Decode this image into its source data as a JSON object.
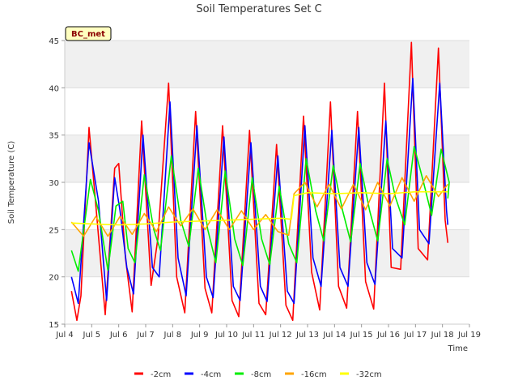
{
  "chart_data": {
    "type": "line",
    "title": "Soil Temperatures Set C",
    "xlabel": "Time",
    "ylabel": "Soil Temperature (C)",
    "station_label": "BC_met",
    "xlim": [
      4,
      19
    ],
    "ylim": [
      15,
      45
    ],
    "x_ticks": [
      {
        "v": 4,
        "label": "Jul 4"
      },
      {
        "v": 5,
        "label": "Jul 5"
      },
      {
        "v": 6,
        "label": "Jul 6"
      },
      {
        "v": 7,
        "label": "Jul 7"
      },
      {
        "v": 8,
        "label": "Jul 8"
      },
      {
        "v": 9,
        "label": "Jul 9"
      },
      {
        "v": 10,
        "label": "Jul 10"
      },
      {
        "v": 11,
        "label": "Jul 11"
      },
      {
        "v": 12,
        "label": "Jul 12"
      },
      {
        "v": 13,
        "label": "Jul 13"
      },
      {
        "v": 14,
        "label": "Jul 14"
      },
      {
        "v": 15,
        "label": "Jul 15"
      },
      {
        "v": 16,
        "label": "Jul 16"
      },
      {
        "v": 17,
        "label": "Jul 17"
      },
      {
        "v": 18,
        "label": "Jul 18"
      },
      {
        "v": 19,
        "label": "Jul 19"
      }
    ],
    "y_ticks": [
      15,
      20,
      25,
      30,
      35,
      40,
      45
    ],
    "background_bands": true,
    "legend_position": "bottom",
    "series": [
      {
        "name": "-2cm",
        "color": "#ff0000",
        "x": [
          4.25,
          4.45,
          4.6,
          4.9,
          5.2,
          5.5,
          5.85,
          6.0,
          6.25,
          6.5,
          6.85,
          7.2,
          7.45,
          7.85,
          8.15,
          8.45,
          8.85,
          9.2,
          9.45,
          9.85,
          10.2,
          10.45,
          10.85,
          11.2,
          11.45,
          11.85,
          12.2,
          12.45,
          12.85,
          13.15,
          13.45,
          13.85,
          14.15,
          14.45,
          14.85,
          15.15,
          15.45,
          15.85,
          16.1,
          16.45,
          16.85,
          17.1,
          17.45,
          17.85,
          18.1,
          18.2
        ],
        "y": [
          18.5,
          15.4,
          18,
          35.8,
          26,
          16,
          31.5,
          32,
          22,
          16.3,
          36.5,
          19.1,
          24,
          40.5,
          20,
          16.2,
          37.5,
          18.8,
          16.2,
          36,
          17.5,
          15.8,
          35.5,
          17.2,
          16,
          34,
          17,
          15.4,
          37,
          20.5,
          16.5,
          38.5,
          19,
          16.7,
          37.5,
          19.5,
          16.6,
          40.5,
          21,
          20.8,
          44.8,
          23,
          21.8,
          44.2,
          26,
          23.6
        ]
      },
      {
        "name": "-4cm",
        "color": "#0000ff",
        "x": [
          4.25,
          4.5,
          4.9,
          5.25,
          5.55,
          5.85,
          6.05,
          6.3,
          6.55,
          6.9,
          7.25,
          7.5,
          7.9,
          8.2,
          8.5,
          8.9,
          9.25,
          9.5,
          9.9,
          10.25,
          10.5,
          10.9,
          11.25,
          11.5,
          11.9,
          12.25,
          12.5,
          12.9,
          13.2,
          13.5,
          13.9,
          14.2,
          14.5,
          14.9,
          15.2,
          15.5,
          15.9,
          16.15,
          16.5,
          16.9,
          17.15,
          17.5,
          17.9,
          18.15,
          18.2
        ],
        "y": [
          20,
          17.2,
          34.2,
          28,
          17.5,
          30.5,
          27,
          21,
          18.2,
          35,
          21,
          20,
          38.5,
          22,
          18,
          36,
          20,
          17.8,
          34.8,
          19,
          17.5,
          34.2,
          19,
          17.4,
          32.8,
          18.5,
          17.2,
          36,
          22,
          19,
          35.5,
          21,
          19,
          35.8,
          21.5,
          19.2,
          36.5,
          23,
          22,
          41,
          25,
          23.5,
          40.5,
          27,
          25.5
        ]
      },
      {
        "name": "-8cm",
        "color": "#00ee00",
        "x": [
          4.25,
          4.5,
          4.95,
          5.25,
          5.6,
          5.9,
          6.15,
          6.35,
          6.6,
          6.95,
          7.3,
          7.55,
          7.95,
          8.3,
          8.6,
          8.95,
          9.3,
          9.6,
          9.95,
          10.3,
          10.6,
          10.95,
          11.3,
          11.6,
          11.95,
          12.3,
          12.6,
          12.95,
          13.3,
          13.6,
          13.95,
          14.3,
          14.6,
          14.95,
          15.3,
          15.6,
          15.95,
          16.25,
          16.6,
          16.95,
          17.3,
          17.6,
          17.95,
          18.25,
          18.2
        ],
        "y": [
          22.8,
          20.6,
          30.3,
          27,
          20.7,
          27.5,
          28,
          23,
          21.5,
          30.8,
          25,
          22.8,
          32.8,
          26,
          23.2,
          31.5,
          25,
          21.5,
          31.2,
          24,
          21.2,
          30.5,
          24,
          21.3,
          29.6,
          23.5,
          21.5,
          32.5,
          27,
          23.8,
          31.8,
          27,
          23.7,
          32,
          27,
          23.8,
          32.5,
          28.5,
          25.5,
          33.8,
          30,
          26.5,
          33.5,
          30,
          28.3
        ]
      },
      {
        "name": "-16cm",
        "color": "#ffa500",
        "x": [
          4.25,
          4.7,
          5.15,
          5.6,
          6.05,
          6.5,
          6.95,
          7.4,
          7.85,
          8.3,
          8.75,
          9.2,
          9.65,
          10.1,
          10.55,
          11.0,
          11.45,
          11.9,
          12.3,
          12.5,
          12.9,
          13.35,
          13.8,
          14.25,
          14.7,
          15.15,
          15.6,
          16.05,
          16.5,
          16.95,
          17.4,
          17.85,
          18.2
        ],
        "y": [
          25.8,
          24.3,
          26.4,
          24.3,
          26.4,
          24.5,
          26.7,
          24.8,
          27.4,
          25.4,
          27.2,
          25,
          27.1,
          25,
          27,
          25,
          26.6,
          24.8,
          24.4,
          28.8,
          30,
          27.4,
          29.8,
          27.2,
          29.8,
          27.1,
          30,
          27.5,
          30.5,
          28,
          30.7,
          28.5,
          29.8
        ]
      },
      {
        "name": "-32cm",
        "color": "#ffff00",
        "x": [
          4.25,
          5,
          6,
          7,
          8,
          9,
          10,
          11,
          12,
          12.4,
          12.5,
          13,
          14,
          15,
          16,
          17,
          18,
          18.2
        ],
        "y": [
          25.7,
          25.6,
          25.5,
          25.6,
          25.8,
          25.9,
          26,
          26.1,
          26.2,
          26.1,
          28.6,
          28.9,
          28.8,
          28.9,
          28.8,
          29,
          29,
          29
        ]
      }
    ]
  }
}
